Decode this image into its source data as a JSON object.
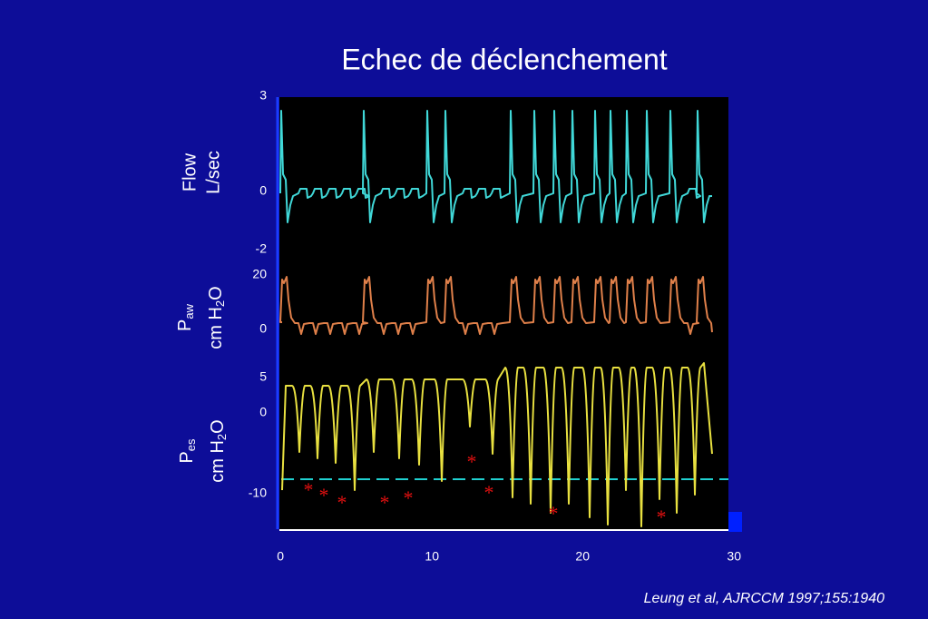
{
  "title": "Echec de déclenchement",
  "panels": [
    {
      "label": [
        "Flow",
        "L/sec"
      ],
      "ticks": [
        "3",
        "0",
        "-2"
      ]
    },
    {
      "label": {
        "symbol": "P",
        "sub": "aw",
        "unit": "cm H",
        "unit_sub": "2",
        "unit_end": "O"
      },
      "ticks": [
        "20",
        "0"
      ]
    },
    {
      "label": {
        "symbol": "P",
        "sub": "es",
        "unit": "cm H",
        "unit_sub": "2",
        "unit_end": "O"
      },
      "ticks": [
        "5",
        "0",
        "-10"
      ]
    }
  ],
  "x_ticks": [
    "0",
    "10",
    "20",
    "30"
  ],
  "markers": [
    "*",
    "*",
    "*",
    "*",
    "*",
    "*",
    "*",
    "*",
    "*"
  ],
  "citation": "Leung et al, AJRCCM 1997;155:1940"
}
